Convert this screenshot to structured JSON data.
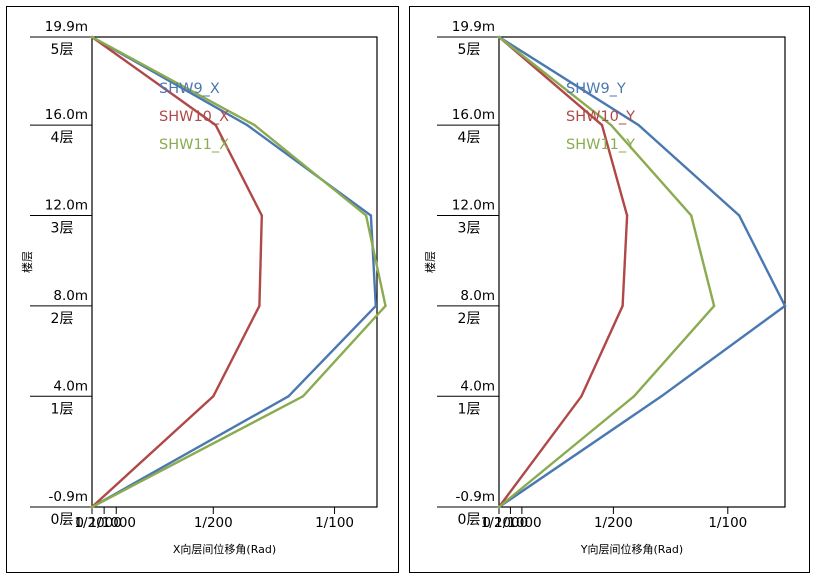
{
  "chart_data": [
    {
      "type": "line",
      "orientation": "vertical-profile",
      "xlabel": "X向层间位移角(Rad)",
      "ylabel": "楼层",
      "xlim": [
        0,
        0.01175
      ],
      "ylim": [
        -0.9,
        19.9
      ],
      "x_ticks": [
        {
          "value": 0,
          "label": "0"
        },
        {
          "value": 0.0005,
          "label": "1/2000"
        },
        {
          "value": 0.001,
          "label": "1/1000"
        },
        {
          "value": 0.005,
          "label": "1/200"
        },
        {
          "value": 0.01,
          "label": "1/100"
        }
      ],
      "y_ticks": [
        {
          "value": 19.9,
          "elevation": "19.9m",
          "floor": "5层"
        },
        {
          "value": 16.0,
          "elevation": "16.0m",
          "floor": "4层"
        },
        {
          "value": 12.0,
          "elevation": "12.0m",
          "floor": "3层"
        },
        {
          "value": 8.0,
          "elevation": "8.0m",
          "floor": "2层"
        },
        {
          "value": 4.0,
          "elevation": "4.0m",
          "floor": "1层"
        },
        {
          "value": -0.9,
          "elevation": "-0.9m",
          "floor": "0层"
        }
      ],
      "y": [
        -0.9,
        4.0,
        8.0,
        12.0,
        16.0,
        19.9
      ],
      "series": [
        {
          "name": "SHW9_X",
          "color": "#4a78b0",
          "x": [
            0,
            0.0081,
            0.0117,
            0.0115,
            0.0064,
            0
          ]
        },
        {
          "name": "SHW10_X",
          "color": "#b04848",
          "x": [
            0,
            0.005,
            0.0069,
            0.007,
            0.0051,
            0
          ]
        },
        {
          "name": "SHW11_X",
          "color": "#8aab50",
          "x": [
            0,
            0.0087,
            0.0121,
            0.0113,
            0.0067,
            0
          ]
        }
      ],
      "legend": "top-left"
    },
    {
      "type": "line",
      "orientation": "vertical-profile",
      "xlabel": "Y向层间位移角(Rad)",
      "ylabel": "楼层",
      "xlim": [
        0,
        0.0125
      ],
      "ylim": [
        -0.9,
        19.9
      ],
      "x_ticks": [
        {
          "value": 0,
          "label": "0"
        },
        {
          "value": 0.0005,
          "label": "1/2000"
        },
        {
          "value": 0.001,
          "label": "1/1000"
        },
        {
          "value": 0.005,
          "label": "1/200"
        },
        {
          "value": 0.01,
          "label": "1/100"
        }
      ],
      "y_ticks": [
        {
          "value": 19.9,
          "elevation": "19.9m",
          "floor": "5层"
        },
        {
          "value": 16.0,
          "elevation": "16.0m",
          "floor": "4层"
        },
        {
          "value": 12.0,
          "elevation": "12.0m",
          "floor": "3层"
        },
        {
          "value": 8.0,
          "elevation": "8.0m",
          "floor": "2层"
        },
        {
          "value": 4.0,
          "elevation": "4.0m",
          "floor": "1层"
        },
        {
          "value": -0.9,
          "elevation": "-0.9m",
          "floor": "0层"
        }
      ],
      "y": [
        -0.9,
        4.0,
        8.0,
        12.0,
        16.0,
        19.9
      ],
      "series": [
        {
          "name": "SHW9_Y",
          "color": "#4a78b0",
          "x": [
            0,
            0.0071,
            0.0125,
            0.0105,
            0.0061,
            0
          ]
        },
        {
          "name": "SHW10_Y",
          "color": "#b04848",
          "x": [
            0,
            0.0036,
            0.0054,
            0.0056,
            0.0045,
            0
          ]
        },
        {
          "name": "SHW11_Y",
          "color": "#8aab50",
          "x": [
            0,
            0.0059,
            0.0094,
            0.0084,
            0.0049,
            0
          ]
        }
      ],
      "legend": "top-left"
    }
  ]
}
